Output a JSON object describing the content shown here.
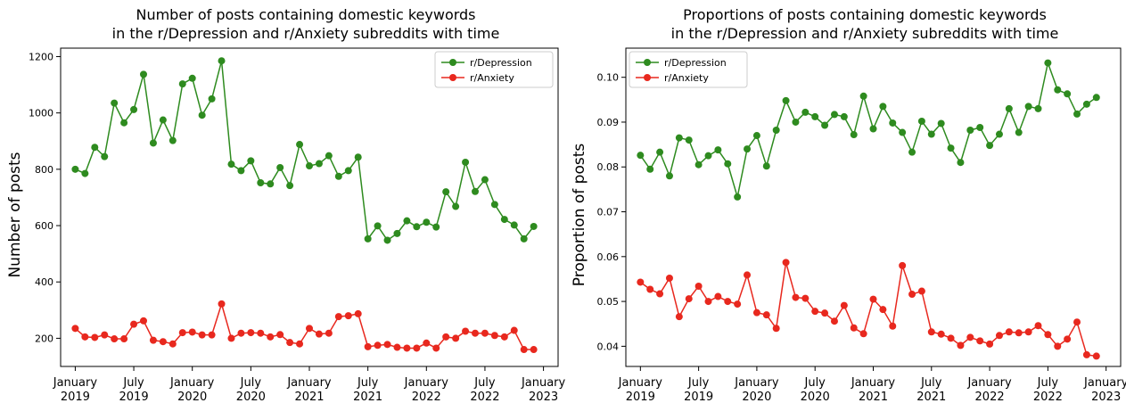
{
  "chart_data": [
    {
      "type": "line",
      "title": [
        "Number of posts containing domestic keywords",
        "in the r/Depression and r/Anxiety subreddits with time"
      ],
      "xlabel": "",
      "ylabel": "Number of posts",
      "ylim": [
        100,
        1230
      ],
      "yticks": [
        200,
        400,
        600,
        800,
        1000,
        1200
      ],
      "ytick_labels": [
        "200",
        "400",
        "600",
        "800",
        "1000",
        "1200"
      ],
      "xlim": [
        -1.5,
        49.5
      ],
      "xticks": [
        0,
        6,
        12,
        18,
        24,
        30,
        36,
        42,
        48
      ],
      "xtick_labels": [
        [
          "January",
          "2019"
        ],
        [
          "July",
          "2019"
        ],
        [
          "January",
          "2020"
        ],
        [
          "July",
          "2020"
        ],
        [
          "January",
          "2021"
        ],
        [
          "July",
          "2021"
        ],
        [
          "January",
          "2022"
        ],
        [
          "July",
          "2022"
        ],
        [
          "January",
          "2023"
        ]
      ],
      "legend_position": "top-right",
      "grid": false,
      "series": [
        {
          "name": "r/Depression",
          "color": "#2e8b1f",
          "values": [
            800,
            785,
            878,
            845,
            1035,
            965,
            1012,
            1137,
            893,
            975,
            902,
            1103,
            1123,
            992,
            1050,
            1185,
            818,
            795,
            830,
            752,
            748,
            806,
            742,
            888,
            812,
            820,
            848,
            775,
            795,
            843,
            553,
            599,
            548,
            572,
            617,
            596,
            612,
            595,
            720,
            668,
            825,
            721,
            763,
            675,
            622,
            602,
            553,
            597
          ]
        },
        {
          "name": "r/Anxiety",
          "color": "#e8281e",
          "values": [
            235,
            205,
            203,
            212,
            198,
            198,
            250,
            262,
            193,
            188,
            180,
            220,
            222,
            212,
            212,
            322,
            200,
            218,
            220,
            218,
            205,
            213,
            185,
            180,
            235,
            215,
            218,
            277,
            280,
            287,
            170,
            175,
            178,
            168,
            165,
            165,
            183,
            165,
            205,
            200,
            225,
            218,
            218,
            210,
            205,
            228,
            160,
            160
          ]
        }
      ]
    },
    {
      "type": "line",
      "title": [
        "Proportions of posts containing domestic keywords",
        "in the r/Depression and r/Anxiety subreddits with time"
      ],
      "xlabel": "",
      "ylabel": "Proportion of posts",
      "ylim": [
        0.0355,
        0.1065
      ],
      "yticks": [
        0.04,
        0.05,
        0.06,
        0.07,
        0.08,
        0.09,
        0.1
      ],
      "ytick_labels": [
        "0.04",
        "0.05",
        "0.06",
        "0.07",
        "0.08",
        "0.09",
        "0.10"
      ],
      "xlim": [
        -1.5,
        49.5
      ],
      "xticks": [
        0,
        6,
        12,
        18,
        24,
        30,
        36,
        42,
        48
      ],
      "xtick_labels": [
        [
          "January",
          "2019"
        ],
        [
          "July",
          "2019"
        ],
        [
          "January",
          "2020"
        ],
        [
          "July",
          "2020"
        ],
        [
          "January",
          "2021"
        ],
        [
          "July",
          "2021"
        ],
        [
          "January",
          "2022"
        ],
        [
          "July",
          "2022"
        ],
        [
          "January",
          "2023"
        ]
      ],
      "legend_position": "top-left",
      "grid": false,
      "series": [
        {
          "name": "r/Depression",
          "color": "#2e8b1f",
          "values": [
            0.0826,
            0.0795,
            0.0833,
            0.078,
            0.0865,
            0.086,
            0.0805,
            0.0825,
            0.0838,
            0.0807,
            0.0733,
            0.084,
            0.087,
            0.0802,
            0.0882,
            0.0948,
            0.09,
            0.0922,
            0.0912,
            0.0893,
            0.0917,
            0.0912,
            0.0872,
            0.0958,
            0.0885,
            0.0935,
            0.0898,
            0.0877,
            0.0833,
            0.0902,
            0.0873,
            0.0897,
            0.0842,
            0.081,
            0.0882,
            0.0888,
            0.0848,
            0.0873,
            0.093,
            0.0877,
            0.0935,
            0.093,
            0.1032,
            0.0972,
            0.0963,
            0.0918,
            0.094,
            0.0955
          ]
        },
        {
          "name": "r/Anxiety",
          "color": "#e8281e",
          "values": [
            0.0543,
            0.0527,
            0.0517,
            0.0552,
            0.0466,
            0.0506,
            0.0534,
            0.05,
            0.0511,
            0.05,
            0.0494,
            0.0559,
            0.0475,
            0.047,
            0.044,
            0.0587,
            0.0509,
            0.0507,
            0.0478,
            0.0474,
            0.0456,
            0.0491,
            0.0441,
            0.0428,
            0.0505,
            0.0482,
            0.0445,
            0.058,
            0.0516,
            0.0523,
            0.0432,
            0.0427,
            0.0418,
            0.0402,
            0.042,
            0.0412,
            0.0405,
            0.0424,
            0.0432,
            0.043,
            0.0432,
            0.0446,
            0.0426,
            0.04,
            0.0416,
            0.0454,
            0.0381,
            0.0378
          ]
        }
      ]
    }
  ]
}
